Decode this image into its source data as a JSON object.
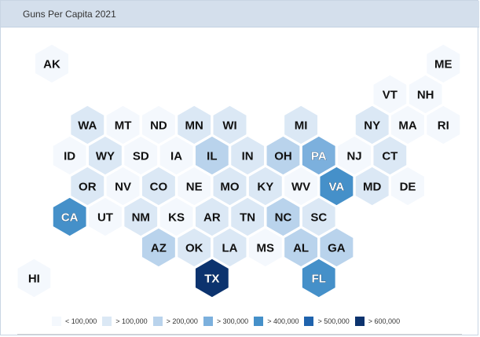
{
  "header": {
    "title": "Guns Per Capita 2021"
  },
  "colors": [
    "#f4f8fd",
    "#dbe8f5",
    "#b9d3ec",
    "#7cb0dd",
    "#4590c9",
    "#1f63ad",
    "#0c336e"
  ],
  "legend": [
    {
      "label": "< 100,000",
      "color": "#f4f8fd"
    },
    {
      "label": "> 100,000",
      "color": "#dbe8f5"
    },
    {
      "label": "> 200,000",
      "color": "#b9d3ec"
    },
    {
      "label": "> 300,000",
      "color": "#7cb0dd"
    },
    {
      "label": "> 400,000",
      "color": "#4590c9"
    },
    {
      "label": "> 500,000",
      "color": "#1f63ad"
    },
    {
      "label": "> 600,000",
      "color": "#0c336e"
    }
  ],
  "chart_data": {
    "type": "heatmap",
    "title": "Guns Per Capita 2021",
    "states": [
      {
        "code": "AK",
        "row": 0,
        "col": 0,
        "level": 0
      },
      {
        "code": "ME",
        "row": 0,
        "col": 11,
        "level": 0
      },
      {
        "code": "VT",
        "row": 1,
        "col": 10,
        "level": 0
      },
      {
        "code": "NH",
        "row": 1,
        "col": 11,
        "level": 0
      },
      {
        "code": "WA",
        "row": 2,
        "col": 1,
        "level": 1
      },
      {
        "code": "MT",
        "row": 2,
        "col": 2,
        "level": 0
      },
      {
        "code": "ND",
        "row": 2,
        "col": 3,
        "level": 0
      },
      {
        "code": "MN",
        "row": 2,
        "col": 4,
        "level": 1
      },
      {
        "code": "WI",
        "row": 2,
        "col": 5,
        "level": 1
      },
      {
        "code": "MI",
        "row": 2,
        "col": 7,
        "level": 1
      },
      {
        "code": "NY",
        "row": 2,
        "col": 9,
        "level": 1
      },
      {
        "code": "MA",
        "row": 2,
        "col": 10,
        "level": 0
      },
      {
        "code": "RI",
        "row": 2,
        "col": 11,
        "level": 0
      },
      {
        "code": "ID",
        "row": 3,
        "col": 1,
        "level": 0
      },
      {
        "code": "WY",
        "row": 3,
        "col": 2,
        "level": 1
      },
      {
        "code": "SD",
        "row": 3,
        "col": 3,
        "level": 0
      },
      {
        "code": "IA",
        "row": 3,
        "col": 4,
        "level": 0
      },
      {
        "code": "IL",
        "row": 3,
        "col": 5,
        "level": 2
      },
      {
        "code": "IN",
        "row": 3,
        "col": 6,
        "level": 1
      },
      {
        "code": "OH",
        "row": 3,
        "col": 7,
        "level": 2
      },
      {
        "code": "PA",
        "row": 3,
        "col": 8,
        "level": 3
      },
      {
        "code": "NJ",
        "row": 3,
        "col": 9,
        "level": 0
      },
      {
        "code": "CT",
        "row": 3,
        "col": 10,
        "level": 1
      },
      {
        "code": "OR",
        "row": 4,
        "col": 1,
        "level": 1
      },
      {
        "code": "NV",
        "row": 4,
        "col": 2,
        "level": 0
      },
      {
        "code": "CO",
        "row": 4,
        "col": 3,
        "level": 1
      },
      {
        "code": "NE",
        "row": 4,
        "col": 4,
        "level": 0
      },
      {
        "code": "MO",
        "row": 4,
        "col": 5,
        "level": 1
      },
      {
        "code": "KY",
        "row": 4,
        "col": 6,
        "level": 1
      },
      {
        "code": "WV",
        "row": 4,
        "col": 7,
        "level": 0
      },
      {
        "code": "VA",
        "row": 4,
        "col": 8,
        "level": 4
      },
      {
        "code": "MD",
        "row": 4,
        "col": 9,
        "level": 1
      },
      {
        "code": "DE",
        "row": 4,
        "col": 10,
        "level": 0
      },
      {
        "code": "CA",
        "row": 5,
        "col": 1,
        "level": 4
      },
      {
        "code": "UT",
        "row": 5,
        "col": 2,
        "level": 0
      },
      {
        "code": "NM",
        "row": 5,
        "col": 3,
        "level": 1
      },
      {
        "code": "KS",
        "row": 5,
        "col": 4,
        "level": 0
      },
      {
        "code": "AR",
        "row": 5,
        "col": 5,
        "level": 1
      },
      {
        "code": "TN",
        "row": 5,
        "col": 6,
        "level": 1
      },
      {
        "code": "NC",
        "row": 5,
        "col": 7,
        "level": 2
      },
      {
        "code": "SC",
        "row": 5,
        "col": 8,
        "level": 1
      },
      {
        "code": "AZ",
        "row": 6,
        "col": 3,
        "level": 2
      },
      {
        "code": "OK",
        "row": 6,
        "col": 4,
        "level": 1
      },
      {
        "code": "LA",
        "row": 6,
        "col": 5,
        "level": 1
      },
      {
        "code": "MS",
        "row": 6,
        "col": 6,
        "level": 0
      },
      {
        "code": "AL",
        "row": 6,
        "col": 7,
        "level": 2
      },
      {
        "code": "GA",
        "row": 6,
        "col": 8,
        "level": 2
      },
      {
        "code": "HI",
        "row": 7,
        "col": 0,
        "level": 0
      },
      {
        "code": "TX",
        "row": 7,
        "col": 5,
        "level": 6
      },
      {
        "code": "FL",
        "row": 7,
        "col": 8,
        "level": 4
      }
    ]
  }
}
